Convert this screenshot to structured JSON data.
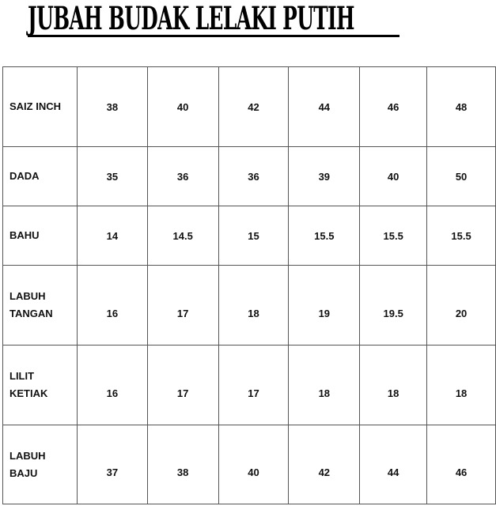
{
  "title": "JUBAH BUDAK LELAKI PUTIH",
  "table": {
    "rows": [
      {
        "label": [
          "SAIZ INCH"
        ],
        "values": [
          "38",
          "40",
          "42",
          "44",
          "46",
          "48"
        ]
      },
      {
        "label": [
          "DADA"
        ],
        "values": [
          "35",
          "36",
          "36",
          "39",
          "40",
          "50"
        ]
      },
      {
        "label": [
          "BAHU"
        ],
        "values": [
          "14",
          "14.5",
          "15",
          "15.5",
          "15.5",
          "15.5"
        ]
      },
      {
        "label": [
          "LABUH",
          "TANGAN"
        ],
        "values": [
          "16",
          "17",
          "18",
          "19",
          "19.5",
          "20"
        ]
      },
      {
        "label": [
          "LILIT",
          "KETIAK"
        ],
        "values": [
          "16",
          "17",
          "17",
          "18",
          "18",
          "18"
        ]
      },
      {
        "label": [
          "LABUH",
          "BAJU"
        ],
        "values": [
          "37",
          "38",
          "40",
          "42",
          "44",
          "46"
        ]
      }
    ]
  }
}
